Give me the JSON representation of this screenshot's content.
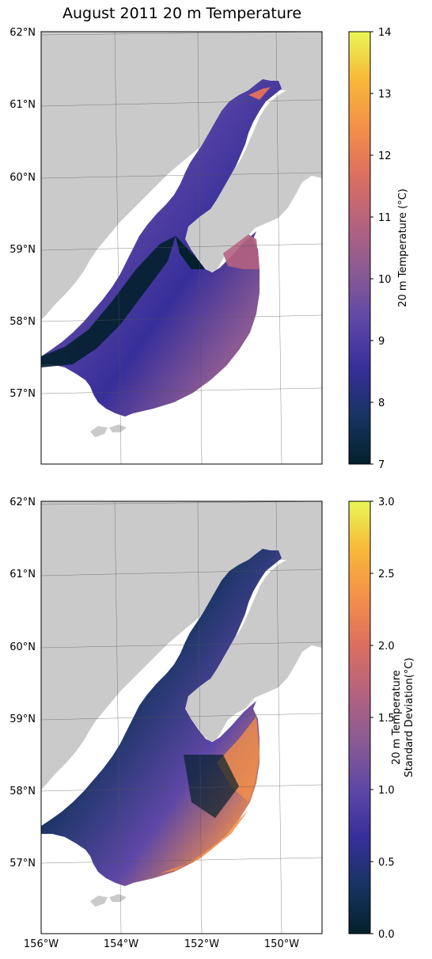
{
  "figure": {
    "title": "August 2011 20 m Temperature"
  },
  "colors": {
    "land": "#cacaca",
    "shore": "#ffffff",
    "grid": "#555555",
    "cmap": [
      "#03202c",
      "#173463",
      "#372f9a",
      "#5e47a6",
      "#8a5a94",
      "#b4627f",
      "#dc6f5f",
      "#f38f49",
      "#f8b839",
      "#e9f656"
    ]
  },
  "panels": [
    {
      "id": "temperature",
      "colorbar": {
        "label_lines": [
          "20 m Temperature (°C)"
        ],
        "vmin": 7,
        "vmax": 14,
        "ticks": [
          "7",
          "8",
          "9",
          "10",
          "11",
          "12",
          "13",
          "14"
        ]
      },
      "lat_labels": [
        "62°N",
        "61°N",
        "60°N",
        "59°N",
        "58°N",
        "57°N"
      ],
      "lon_labels": []
    },
    {
      "id": "stddev",
      "colorbar": {
        "label_lines": [
          "20 m Temperature",
          "Standard Deviation(°C)"
        ],
        "vmin": 0.0,
        "vmax": 3.0,
        "ticks": [
          "0.0",
          "0.5",
          "1.0",
          "1.5",
          "2.0",
          "2.5",
          "3.0"
        ]
      },
      "lat_labels": [
        "62°N",
        "61°N",
        "60°N",
        "59°N",
        "58°N",
        "57°N"
      ],
      "lon_labels": [
        "156°W",
        "154°W",
        "152°W",
        "150°W"
      ]
    }
  ]
}
